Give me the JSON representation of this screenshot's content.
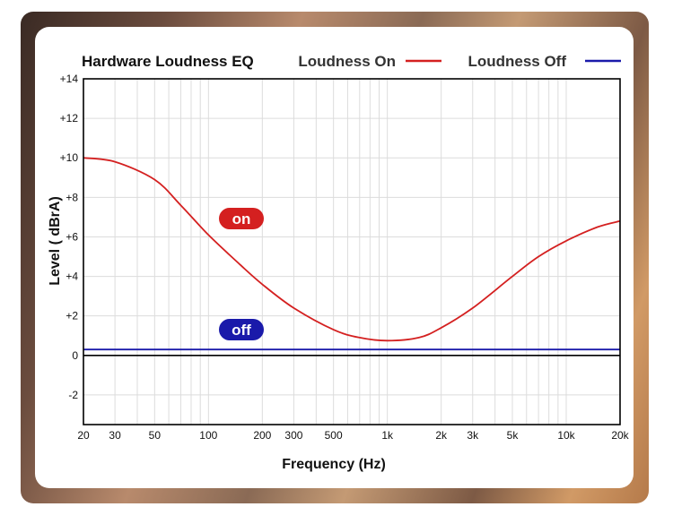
{
  "chart_data": {
    "type": "line",
    "title": "Hardware Loudness EQ",
    "xlabel": "Frequency (Hz)",
    "ylabel": "Level ( dBrA)",
    "xscale": "log",
    "xlim": [
      20,
      20000
    ],
    "ylim": [
      -3.5,
      14
    ],
    "grid": true,
    "legend": "top-right",
    "x_ticks": [
      {
        "value": 20,
        "label": "20"
      },
      {
        "value": 30,
        "label": "30"
      },
      {
        "value": 50,
        "label": "50"
      },
      {
        "value": 100,
        "label": "100"
      },
      {
        "value": 200,
        "label": "200"
      },
      {
        "value": 300,
        "label": "300"
      },
      {
        "value": 500,
        "label": "500"
      },
      {
        "value": 1000,
        "label": "1k"
      },
      {
        "value": 2000,
        "label": "2k"
      },
      {
        "value": 3000,
        "label": "3k"
      },
      {
        "value": 5000,
        "label": "5k"
      },
      {
        "value": 10000,
        "label": "10k"
      },
      {
        "value": 20000,
        "label": "20k"
      }
    ],
    "y_ticks": [
      {
        "value": 14,
        "label": "+14"
      },
      {
        "value": 12,
        "label": "+12"
      },
      {
        "value": 10,
        "label": "+10"
      },
      {
        "value": 8,
        "label": "+8"
      },
      {
        "value": 6,
        "label": "+6"
      },
      {
        "value": 4,
        "label": "+4"
      },
      {
        "value": 2,
        "label": "+2"
      },
      {
        "value": 0,
        "label": "0"
      },
      {
        "value": -2,
        "label": "-2"
      }
    ],
    "series": [
      {
        "name": "Loudness On",
        "color": "#d42020",
        "badge": "on",
        "x": [
          20,
          30,
          50,
          70,
          100,
          150,
          200,
          300,
          500,
          700,
          1000,
          1500,
          2000,
          3000,
          5000,
          7000,
          10000,
          15000,
          20000
        ],
        "y": [
          10.0,
          9.8,
          8.9,
          7.6,
          6.1,
          4.6,
          3.6,
          2.4,
          1.3,
          0.9,
          0.75,
          0.9,
          1.4,
          2.4,
          4.0,
          5.0,
          5.8,
          6.5,
          6.8
        ]
      },
      {
        "name": "Loudness Off",
        "color": "#1a1aaa",
        "badge": "off",
        "x": [
          20,
          20000
        ],
        "y": [
          0.3,
          0.3
        ]
      }
    ]
  }
}
